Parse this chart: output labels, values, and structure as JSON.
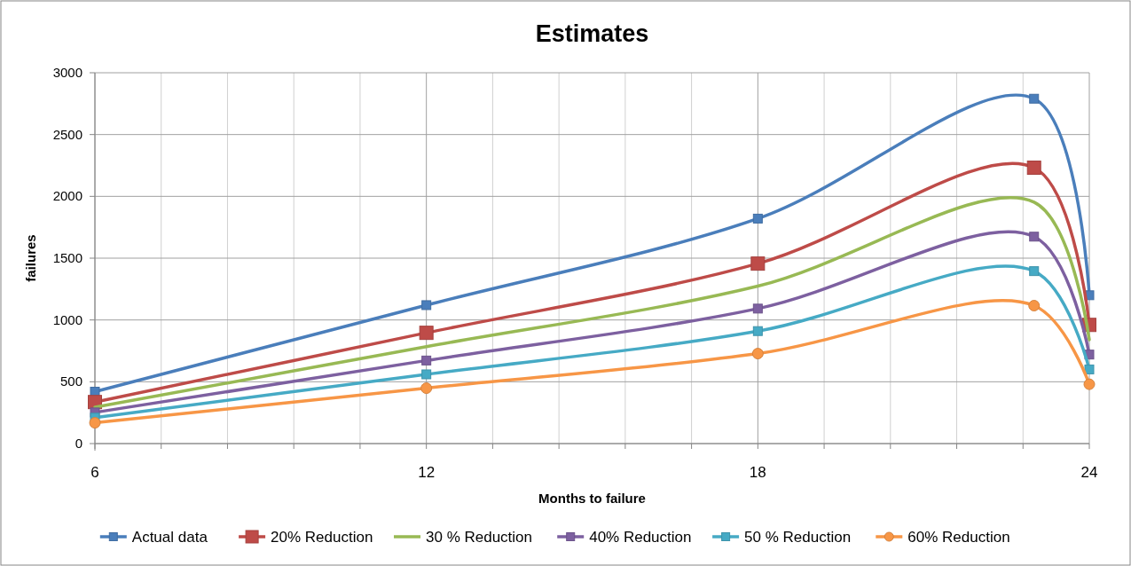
{
  "chart_data": {
    "type": "line",
    "title": "Estimates",
    "xlabel": "Months to failure",
    "ylabel": "failures",
    "x": [
      6,
      12,
      18,
      23,
      24
    ],
    "xlim": [
      6,
      24
    ],
    "xticks": [
      6,
      {
        "value": 7.2,
        "label": null
      },
      {
        "value": 8.4,
        "label": null
      },
      {
        "value": 9.6,
        "label": null
      },
      {
        "value": 10.8,
        "label": null
      },
      12,
      {
        "value": 13.2,
        "label": null
      },
      {
        "value": 14.4,
        "label": null
      },
      {
        "value": 15.6,
        "label": null
      },
      {
        "value": 16.8,
        "label": null
      },
      18,
      {
        "value": 19.2,
        "label": null
      },
      {
        "value": 20.4,
        "label": null
      },
      {
        "value": 21.6,
        "label": null
      },
      {
        "value": 22.8,
        "label": null
      },
      24
    ],
    "ylim": [
      0,
      3000
    ],
    "yticks": [
      0,
      500,
      1000,
      1500,
      2000,
      2500,
      3000
    ],
    "grid": true,
    "legend": "bottom",
    "series": [
      {
        "name": "Actual data",
        "color": "#4a7ebb",
        "marker": "square",
        "values": [
          420,
          1120,
          1820,
          2790,
          1200
        ]
      },
      {
        "name": "20% Reduction",
        "color": "#be4b48",
        "marker": "square",
        "values": [
          336,
          896,
          1456,
          2232,
          960
        ]
      },
      {
        "name": "30 % Reduction",
        "color": "#98b954",
        "marker": "none",
        "values": [
          294,
          784,
          1274,
          1953,
          840
        ]
      },
      {
        "name": "40% Reduction",
        "color": "#7d60a0",
        "marker": "square",
        "values": [
          252,
          672,
          1092,
          1674,
          720
        ]
      },
      {
        "name": "50 % Reduction",
        "color": "#46aac5",
        "marker": "square",
        "values": [
          210,
          560,
          910,
          1395,
          600
        ]
      },
      {
        "name": "60% Reduction",
        "color": "#f79646",
        "marker": "circle",
        "values": [
          168,
          448,
          728,
          1116,
          480
        ]
      }
    ]
  }
}
